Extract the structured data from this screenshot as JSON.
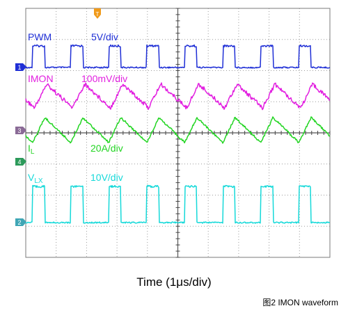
{
  "chart_data": {
    "type": "line",
    "xlabel": "Time (1μs/div)",
    "caption": "图2 IMON waveform",
    "grid": true,
    "x_divisions": 10,
    "y_divisions": 8,
    "x_units_per_div": "1μs",
    "trigger_marker": "T",
    "series": [
      {
        "name": "PWM",
        "scale": "5V/div",
        "color": "#1f2fd6",
        "marker": "1",
        "shape": "pulse"
      },
      {
        "name": "IMON",
        "scale": "100mV/div",
        "color": "#e21fe0",
        "marker": "3",
        "shape": "triangle"
      },
      {
        "name": "I",
        "name_subscript": "L",
        "scale": "20A/div",
        "color": "#22d522",
        "marker": "4",
        "shape": "sawtooth"
      },
      {
        "name": "V",
        "name_subscript": "LX",
        "scale": "10V/div",
        "color": "#15d9d9",
        "marker": "2",
        "shape": "pulse"
      }
    ]
  }
}
